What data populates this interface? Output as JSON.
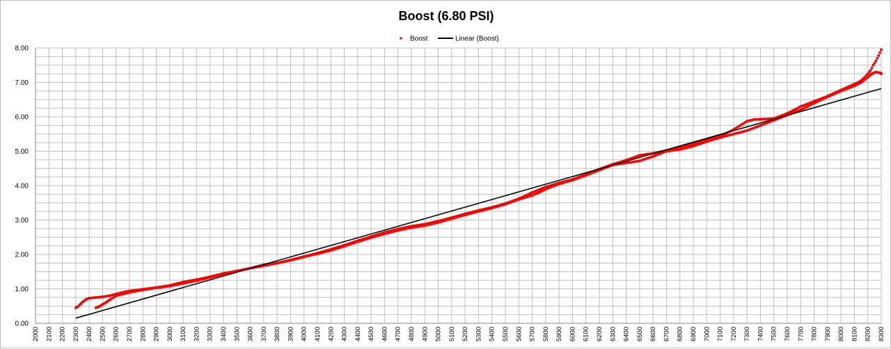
{
  "chart_data": {
    "type": "scatter",
    "title": "Boost (6.80 PSI)",
    "xlabel": "",
    "ylabel": "",
    "xlim": [
      2000,
      8300
    ],
    "ylim": [
      0,
      8
    ],
    "x_ticks": [
      2000,
      2100,
      2200,
      2300,
      2400,
      2500,
      2600,
      2700,
      2800,
      2900,
      3000,
      3100,
      3200,
      3300,
      3400,
      3500,
      3600,
      3700,
      3800,
      3900,
      4000,
      4100,
      4200,
      4300,
      4400,
      4500,
      4600,
      4700,
      4800,
      4900,
      5000,
      5100,
      5200,
      5300,
      5400,
      5500,
      5600,
      5700,
      5800,
      5900,
      6000,
      6100,
      6200,
      6300,
      6400,
      6500,
      6600,
      6700,
      6800,
      6900,
      7000,
      7100,
      7200,
      7300,
      7400,
      7500,
      7600,
      7700,
      7800,
      7900,
      8000,
      8100,
      8200,
      8300
    ],
    "y_ticks": [
      "0.00",
      "1.00",
      "2.00",
      "3.00",
      "4.00",
      "5.00",
      "6.00",
      "7.00",
      "8.00"
    ],
    "grid": true,
    "minor_grid_step": 0.25,
    "legend": {
      "position": "top-center",
      "entries": [
        "Boost",
        "Linear (Boost)"
      ]
    },
    "colors": {
      "series": "#ff0000",
      "trend": "#000000",
      "grid": "#bfbfbf"
    },
    "series": [
      {
        "name": "Boost",
        "style": "points",
        "x": [
          2300,
          2320,
          2340,
          2360,
          2380,
          2400,
          2450,
          2500,
          2550,
          2600,
          2650,
          2700,
          2800,
          2900,
          3000,
          3100,
          3200,
          3300,
          3400,
          3500,
          3600,
          3700,
          3800,
          3900,
          4000,
          4100,
          4200,
          4300,
          4400,
          4500,
          4600,
          4700,
          4800,
          4900,
          5000,
          5100,
          5200,
          5300,
          5400,
          5500,
          5600,
          5700,
          5800,
          5900,
          6000,
          6100,
          6200,
          6300,
          6400,
          6500,
          6600,
          6700,
          6800,
          6900,
          7000,
          7100,
          7200,
          7300,
          7350,
          7400,
          7500,
          7600,
          7700,
          7800,
          7900,
          8000,
          8100,
          8150,
          8200,
          8220,
          8240,
          8260,
          8280,
          8300
        ],
        "y": [
          0.45,
          0.5,
          0.58,
          0.65,
          0.7,
          0.73,
          0.75,
          0.77,
          0.8,
          0.85,
          0.9,
          0.94,
          0.99,
          1.04,
          1.1,
          1.2,
          1.27,
          1.35,
          1.45,
          1.52,
          1.6,
          1.7,
          1.75,
          1.84,
          1.94,
          2.04,
          2.15,
          2.27,
          2.4,
          2.52,
          2.64,
          2.74,
          2.82,
          2.88,
          2.97,
          3.07,
          3.18,
          3.28,
          3.37,
          3.48,
          3.62,
          3.8,
          3.96,
          4.08,
          4.18,
          4.33,
          4.48,
          4.62,
          4.74,
          4.88,
          4.94,
          5.02,
          5.1,
          5.22,
          5.33,
          5.43,
          5.63,
          5.87,
          5.92,
          5.93,
          5.95,
          6.1,
          6.3,
          6.45,
          6.6,
          6.78,
          6.95,
          7.05,
          7.25,
          7.35,
          7.5,
          7.62,
          7.78,
          7.95
        ]
      },
      {
        "name": "Boost",
        "style": "points",
        "x": [
          2450,
          2480,
          2500,
          2530,
          2560,
          2600,
          2700,
          2800,
          2900,
          3000,
          3100,
          3200,
          3300,
          3400,
          3500,
          3600,
          3700,
          3800,
          3900,
          4000,
          4100,
          4200,
          4300,
          4400,
          4500,
          4600,
          4700,
          4800,
          4900,
          5000,
          5100,
          5200,
          5300,
          5400,
          5500,
          5600,
          5700,
          5750,
          5800,
          5900,
          6000,
          6100,
          6200,
          6300,
          6400,
          6500,
          6600,
          6700,
          6800,
          6900,
          7000,
          7100,
          7200,
          7300,
          7400,
          7500,
          7600,
          7700,
          7800,
          7900,
          8000,
          8100,
          8150,
          8200,
          8230,
          8260,
          8290,
          8300
        ],
        "y": [
          0.45,
          0.5,
          0.55,
          0.62,
          0.7,
          0.8,
          0.9,
          0.97,
          1.03,
          1.08,
          1.16,
          1.24,
          1.33,
          1.43,
          1.52,
          1.6,
          1.67,
          1.75,
          1.83,
          1.93,
          2.02,
          2.12,
          2.24,
          2.37,
          2.49,
          2.6,
          2.7,
          2.78,
          2.84,
          2.93,
          3.04,
          3.15,
          3.25,
          3.35,
          3.46,
          3.6,
          3.72,
          3.8,
          3.9,
          4.05,
          4.16,
          4.3,
          4.45,
          4.6,
          4.66,
          4.72,
          4.85,
          5.0,
          5.05,
          5.15,
          5.28,
          5.4,
          5.5,
          5.6,
          5.75,
          5.9,
          6.05,
          6.2,
          6.4,
          6.58,
          6.75,
          6.9,
          7.0,
          7.15,
          7.25,
          7.3,
          7.28,
          7.25
        ]
      },
      {
        "name": "Linear (Boost)",
        "style": "line",
        "x": [
          2300,
          8300
        ],
        "y": [
          0.15,
          6.82
        ]
      }
    ]
  }
}
